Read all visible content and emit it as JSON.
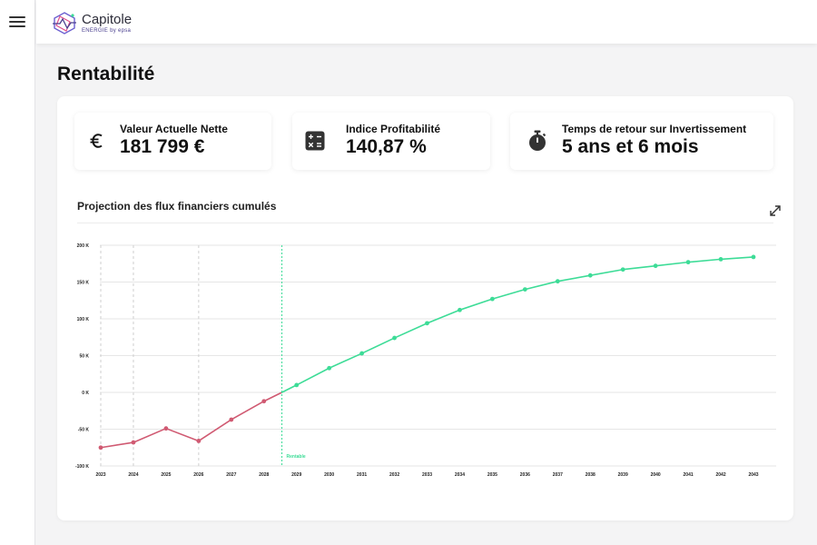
{
  "app": {
    "logo_name": "Capitole",
    "logo_sub": "ENERGIE by epsa",
    "menu_icon": "hamburger-menu-icon"
  },
  "page": {
    "title": "Rentabilité"
  },
  "kpis": [
    {
      "label": "Valeur Actuelle Nette",
      "value": "181 799 €",
      "icon": "euro-icon"
    },
    {
      "label": "Indice Profitabilité",
      "value": "140,87 %",
      "icon": "calculator-icon"
    },
    {
      "label": "Temps de retour sur Invertissement",
      "value": "5 ans et 6 mois",
      "icon": "stopwatch-icon"
    }
  ],
  "chart": {
    "title": "Projection des flux financiers cumulés",
    "expand_icon": "expand-icon",
    "marker_label": "Rentable"
  },
  "colors": {
    "positive": "#3ddc97",
    "negative": "#d05a72",
    "marker": "#3ddc97",
    "brand_purple": "#4a3f8f"
  },
  "chart_data": {
    "type": "line",
    "title": "Projection des flux financiers cumulés",
    "xlabel": "",
    "ylabel": "",
    "ylim": [
      -100,
      200
    ],
    "yticks": [
      200,
      150,
      100,
      50,
      0,
      -50,
      -100
    ],
    "ytick_labels": [
      "200 K",
      "150 K",
      "100 K",
      "50 K",
      "0 K",
      "-50 K",
      "-100 K"
    ],
    "x_labels": [
      "2023",
      "2024",
      "2025",
      "2026",
      "2027",
      "2028",
      "2029",
      "2030",
      "2031",
      "2032",
      "2033",
      "2034",
      "2035",
      "2036",
      "2037",
      "2038",
      "2039",
      "2040",
      "2041",
      "2042",
      "2043"
    ],
    "grid": true,
    "dashed_gridlines_x": [
      2023,
      2024,
      2026
    ],
    "breakeven_x": 2028.55,
    "breakeven_label": "Rentable",
    "points": [
      [
        2023,
        -75
      ],
      [
        2024,
        -68
      ],
      [
        2025,
        -49
      ],
      [
        2026,
        -66
      ],
      [
        2027,
        -37
      ],
      [
        2028,
        -12
      ],
      [
        2028.55,
        0
      ],
      [
        2029,
        10
      ],
      [
        2030,
        33
      ],
      [
        2031,
        53
      ],
      [
        2032,
        74
      ],
      [
        2033,
        94
      ],
      [
        2034,
        112
      ],
      [
        2035,
        127
      ],
      [
        2036,
        140
      ],
      [
        2037,
        151
      ],
      [
        2038,
        159
      ],
      [
        2039,
        167
      ],
      [
        2040,
        172
      ],
      [
        2041,
        177
      ],
      [
        2042,
        181
      ],
      [
        2043,
        184
      ]
    ]
  }
}
